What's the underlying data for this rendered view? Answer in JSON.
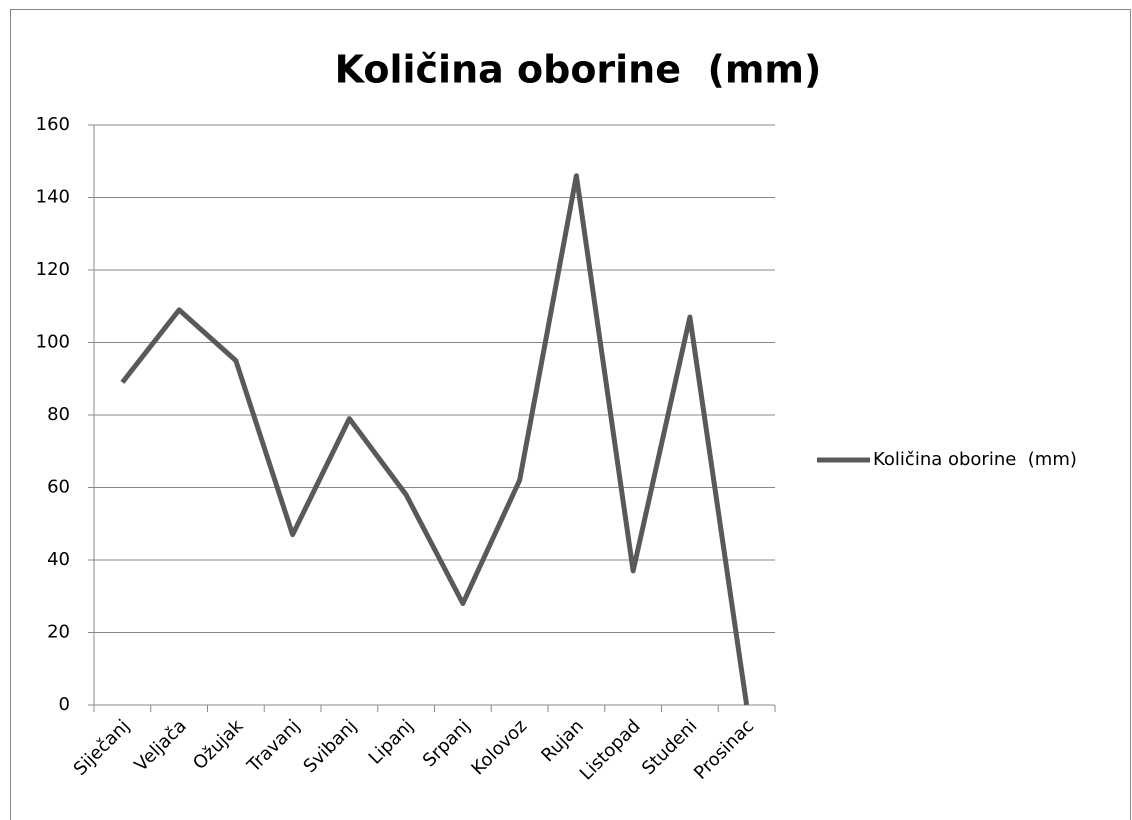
{
  "chart_data": {
    "type": "line",
    "title": "Količina oborine  (mm)",
    "categories": [
      "Siječanj",
      "Veljača",
      "Ožujak",
      "Travanj",
      "Svibanj",
      "Lipanj",
      "Srpanj",
      "Kolovoz",
      "Rujan",
      "Listopad",
      "Studeni",
      "Prosinac"
    ],
    "series": [
      {
        "name": "Količina oborine  (mm)",
        "color": "#595959",
        "values": [
          89,
          109,
          95,
          47,
          79,
          58,
          28,
          62,
          146,
          37,
          107,
          0
        ]
      }
    ],
    "ylim": [
      0,
      160
    ],
    "yticks": [
      0,
      20,
      40,
      60,
      80,
      100,
      120,
      140,
      160
    ],
    "grid": true,
    "legend": "right"
  }
}
